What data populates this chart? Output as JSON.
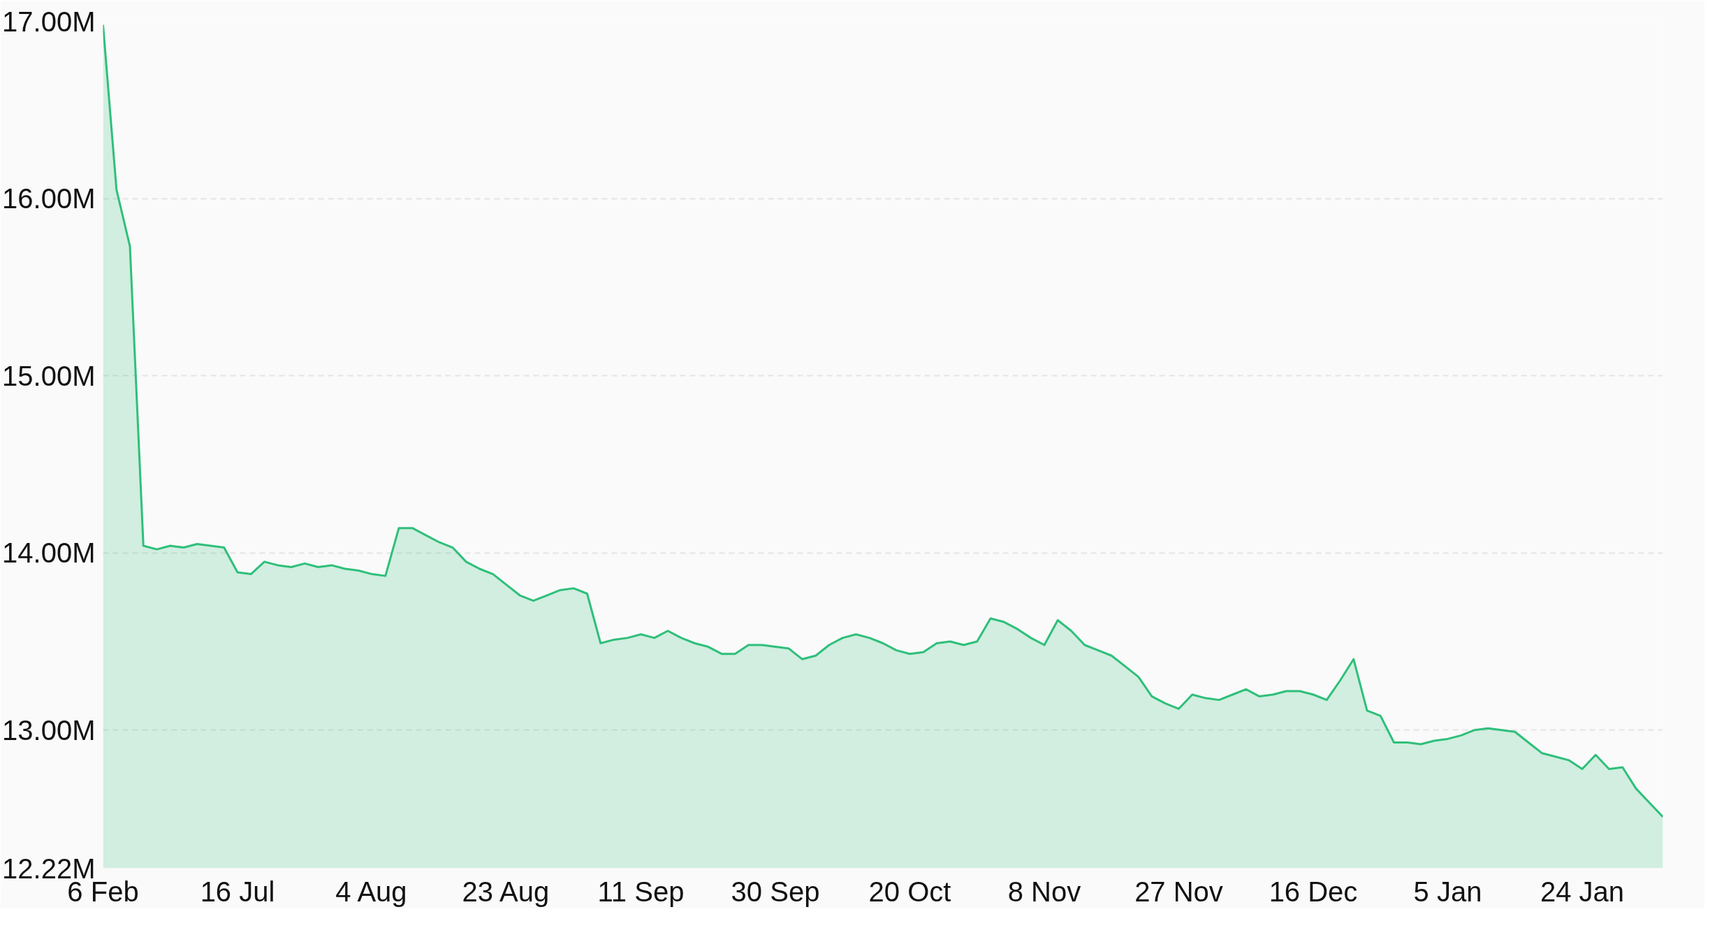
{
  "chart_data": {
    "type": "area",
    "categories": [
      "6 Feb",
      null,
      null,
      null,
      null,
      null,
      null,
      null,
      null,
      null,
      "16 Jul",
      null,
      null,
      null,
      null,
      null,
      null,
      null,
      null,
      null,
      "4 Aug",
      null,
      null,
      null,
      null,
      null,
      null,
      null,
      null,
      null,
      "23 Aug",
      null,
      null,
      null,
      null,
      null,
      null,
      null,
      null,
      null,
      "11 Sep",
      null,
      null,
      null,
      null,
      null,
      null,
      null,
      null,
      null,
      "30 Sep",
      null,
      null,
      null,
      null,
      null,
      null,
      null,
      null,
      null,
      "20 Oct",
      null,
      null,
      null,
      null,
      null,
      null,
      null,
      null,
      null,
      "8 Nov",
      null,
      null,
      null,
      null,
      null,
      null,
      null,
      null,
      null,
      "27 Nov",
      null,
      null,
      null,
      null,
      null,
      null,
      null,
      null,
      null,
      "16 Dec",
      null,
      null,
      null,
      null,
      null,
      null,
      null,
      null,
      null,
      "5 Jan",
      null,
      null,
      null,
      null,
      null,
      null,
      null,
      null,
      null,
      "24 Jan",
      null,
      null,
      null,
      null,
      null,
      null
    ],
    "series": [
      {
        "color": "#2fbf7a",
        "values": [
          16.98,
          16.05,
          15.73,
          14.04,
          14.02,
          14.04,
          14.03,
          14.05,
          14.04,
          14.03,
          13.89,
          13.88,
          13.95,
          13.93,
          13.92,
          13.94,
          13.92,
          13.93,
          13.91,
          13.9,
          13.88,
          13.87,
          14.14,
          14.14,
          14.1,
          14.06,
          14.03,
          13.95,
          13.91,
          13.88,
          13.82,
          13.76,
          13.73,
          13.76,
          13.79,
          13.8,
          13.77,
          13.49,
          13.51,
          13.52,
          13.54,
          13.52,
          13.56,
          13.52,
          13.49,
          13.47,
          13.43,
          13.43,
          13.48,
          13.48,
          13.47,
          13.46,
          13.4,
          13.42,
          13.48,
          13.52,
          13.54,
          13.52,
          13.49,
          13.45,
          13.43,
          13.44,
          13.49,
          13.5,
          13.48,
          13.5,
          13.63,
          13.61,
          13.57,
          13.52,
          13.48,
          13.62,
          13.56,
          13.48,
          13.45,
          13.42,
          13.36,
          13.3,
          13.19,
          13.15,
          13.12,
          13.2,
          13.18,
          13.17,
          13.2,
          13.23,
          13.19,
          13.2,
          13.22,
          13.22,
          13.2,
          13.17,
          13.28,
          13.4,
          13.11,
          13.08,
          12.93,
          12.93,
          12.92,
          12.94,
          12.95,
          12.97,
          13.0,
          13.01,
          13.0,
          12.99,
          12.93,
          12.87,
          12.85,
          12.83,
          12.78,
          12.86,
          12.78,
          12.79,
          12.67,
          12.59,
          12.51
        ]
      }
    ],
    "ylim": [
      12.22,
      17.0
    ],
    "yticks": [
      {
        "value": 12.22,
        "label": "12.22M"
      },
      {
        "value": 13,
        "label": "13.00M"
      },
      {
        "value": 14,
        "label": "14.00M"
      },
      {
        "value": 15,
        "label": "15.00M"
      },
      {
        "value": 16,
        "label": "16.00M"
      },
      {
        "value": 17,
        "label": "17.00M"
      }
    ],
    "grid": "y"
  }
}
